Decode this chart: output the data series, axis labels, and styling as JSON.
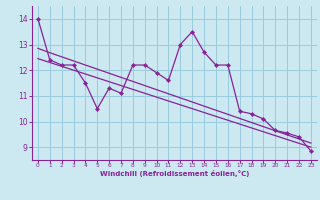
{
  "xlabel": "Windchill (Refroidissement éolien,°C)",
  "background_color": "#cce8f0",
  "line_color": "#882299",
  "grid_color": "#99ccdd",
  "x_data": [
    0,
    1,
    2,
    3,
    4,
    5,
    6,
    7,
    8,
    9,
    10,
    11,
    12,
    13,
    14,
    15,
    16,
    17,
    18,
    19,
    20,
    21,
    22,
    23
  ],
  "y_main": [
    14.0,
    12.4,
    12.2,
    12.2,
    11.5,
    10.5,
    11.3,
    11.1,
    12.2,
    12.2,
    11.9,
    11.6,
    13.0,
    13.5,
    12.7,
    12.2,
    12.2,
    10.4,
    10.3,
    10.1,
    9.65,
    9.55,
    9.4,
    8.85
  ],
  "y_line1": [
    12.85,
    12.68,
    12.52,
    12.36,
    12.2,
    12.04,
    11.88,
    11.72,
    11.56,
    11.4,
    11.24,
    11.08,
    10.92,
    10.76,
    10.6,
    10.44,
    10.28,
    10.12,
    9.96,
    9.8,
    9.64,
    9.48,
    9.32,
    9.16
  ],
  "y_line2": [
    12.45,
    12.3,
    12.15,
    12.0,
    11.85,
    11.7,
    11.55,
    11.4,
    11.25,
    11.1,
    10.95,
    10.8,
    10.65,
    10.5,
    10.35,
    10.2,
    10.05,
    9.9,
    9.75,
    9.6,
    9.45,
    9.3,
    9.15,
    9.0
  ],
  "ylim": [
    8.5,
    14.5
  ],
  "xlim": [
    -0.5,
    23.5
  ],
  "yticks": [
    9,
    10,
    11,
    12,
    13,
    14
  ],
  "xticks": [
    0,
    1,
    2,
    3,
    4,
    5,
    6,
    7,
    8,
    9,
    10,
    11,
    12,
    13,
    14,
    15,
    16,
    17,
    18,
    19,
    20,
    21,
    22,
    23
  ]
}
